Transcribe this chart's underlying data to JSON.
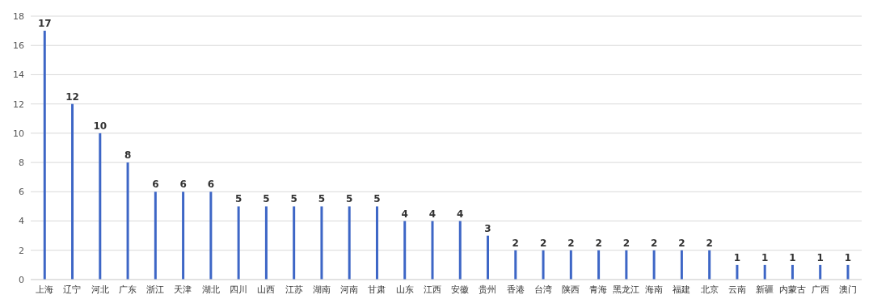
{
  "chart_data": {
    "type": "bar",
    "categories": [
      "上海",
      "辽宁",
      "河北",
      "广东",
      "浙江",
      "天津",
      "湖北",
      "四川",
      "山西",
      "江苏",
      "湖南",
      "河南",
      "甘肃",
      "山东",
      "江西",
      "安徽",
      "贵州",
      "香港",
      "台湾",
      "陕西",
      "青海",
      "黑龙江",
      "海南",
      "福建",
      "北京",
      "云南",
      "新疆",
      "内蒙古",
      "广西",
      "澳门"
    ],
    "values": [
      17,
      12,
      10,
      8,
      6,
      6,
      6,
      5,
      5,
      5,
      5,
      5,
      5,
      4,
      4,
      4,
      3,
      2,
      2,
      2,
      2,
      2,
      2,
      2,
      2,
      1,
      1,
      1,
      1,
      1
    ],
    "color": "#3d66c6",
    "ylim": [
      0,
      18
    ],
    "yticks": [
      0,
      2,
      4,
      6,
      8,
      10,
      12,
      14,
      16,
      18
    ],
    "grid": "y",
    "data_labels": true
  }
}
